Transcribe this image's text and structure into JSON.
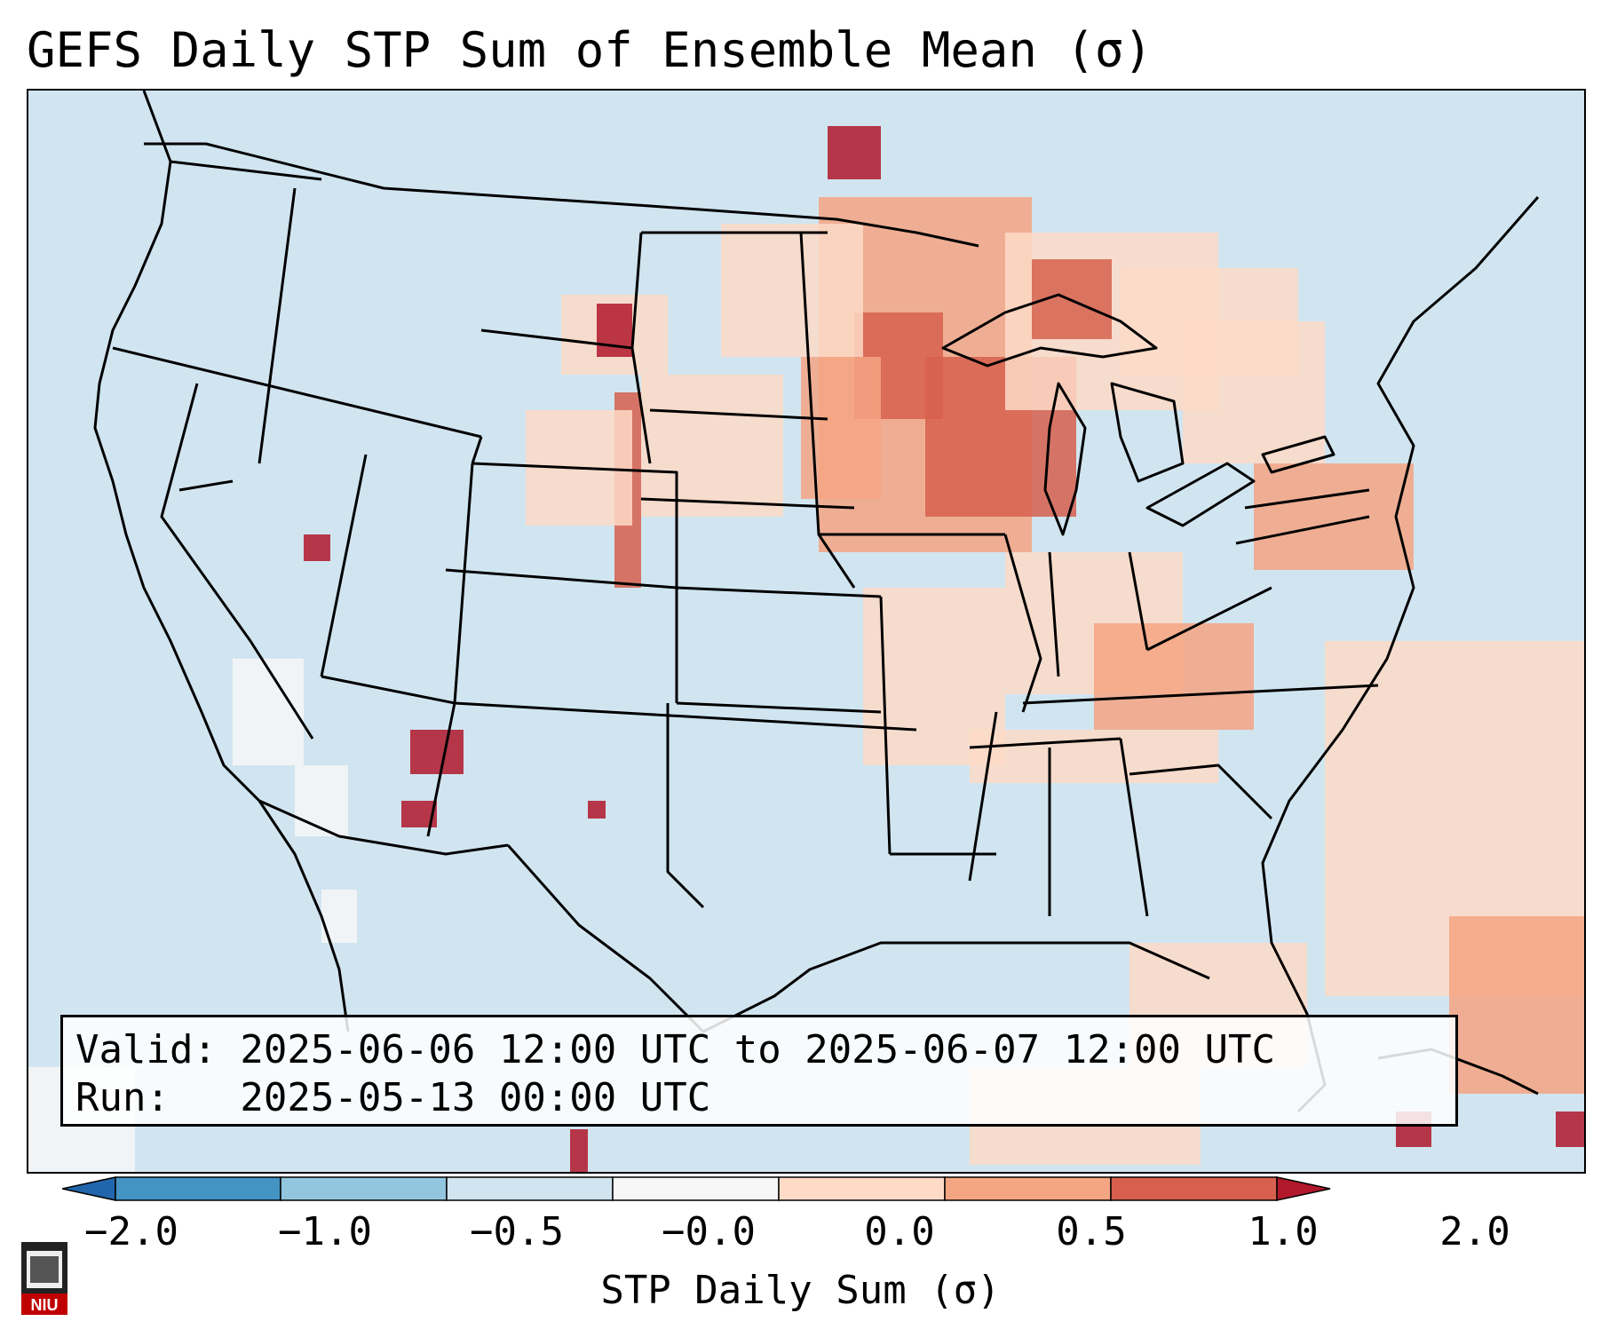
{
  "title": "GEFS Daily STP Sum of Ensemble Mean (σ)",
  "info": {
    "valid_line": "Valid: 2025-06-06 12:00 UTC to 2025-06-07 12:00 UTC",
    "run_line": "Run:   2025-05-13 00:00 UTC"
  },
  "colorbar": {
    "label": "STP Daily Sum (σ)",
    "ticks": [
      "−2.0",
      "−1.0",
      "−0.5",
      "−0.0",
      "0.0",
      "0.5",
      "1.0",
      "2.0"
    ],
    "colors": [
      "#2166ac",
      "#4393c3",
      "#92c5de",
      "#d1e5f0",
      "#f7f7f7",
      "#fddbc7",
      "#f4a582",
      "#d6604d",
      "#b2182b"
    ]
  },
  "legend_colors": {
    "background": "#d1e5f0",
    "near_zero": "#f7f7f7",
    "low_pos": "#fddbc7",
    "mid_pos": "#f4a582",
    "high_pos": "#d6604d",
    "max_pos": "#b2182b"
  },
  "logo": {
    "text": "NIU"
  }
}
